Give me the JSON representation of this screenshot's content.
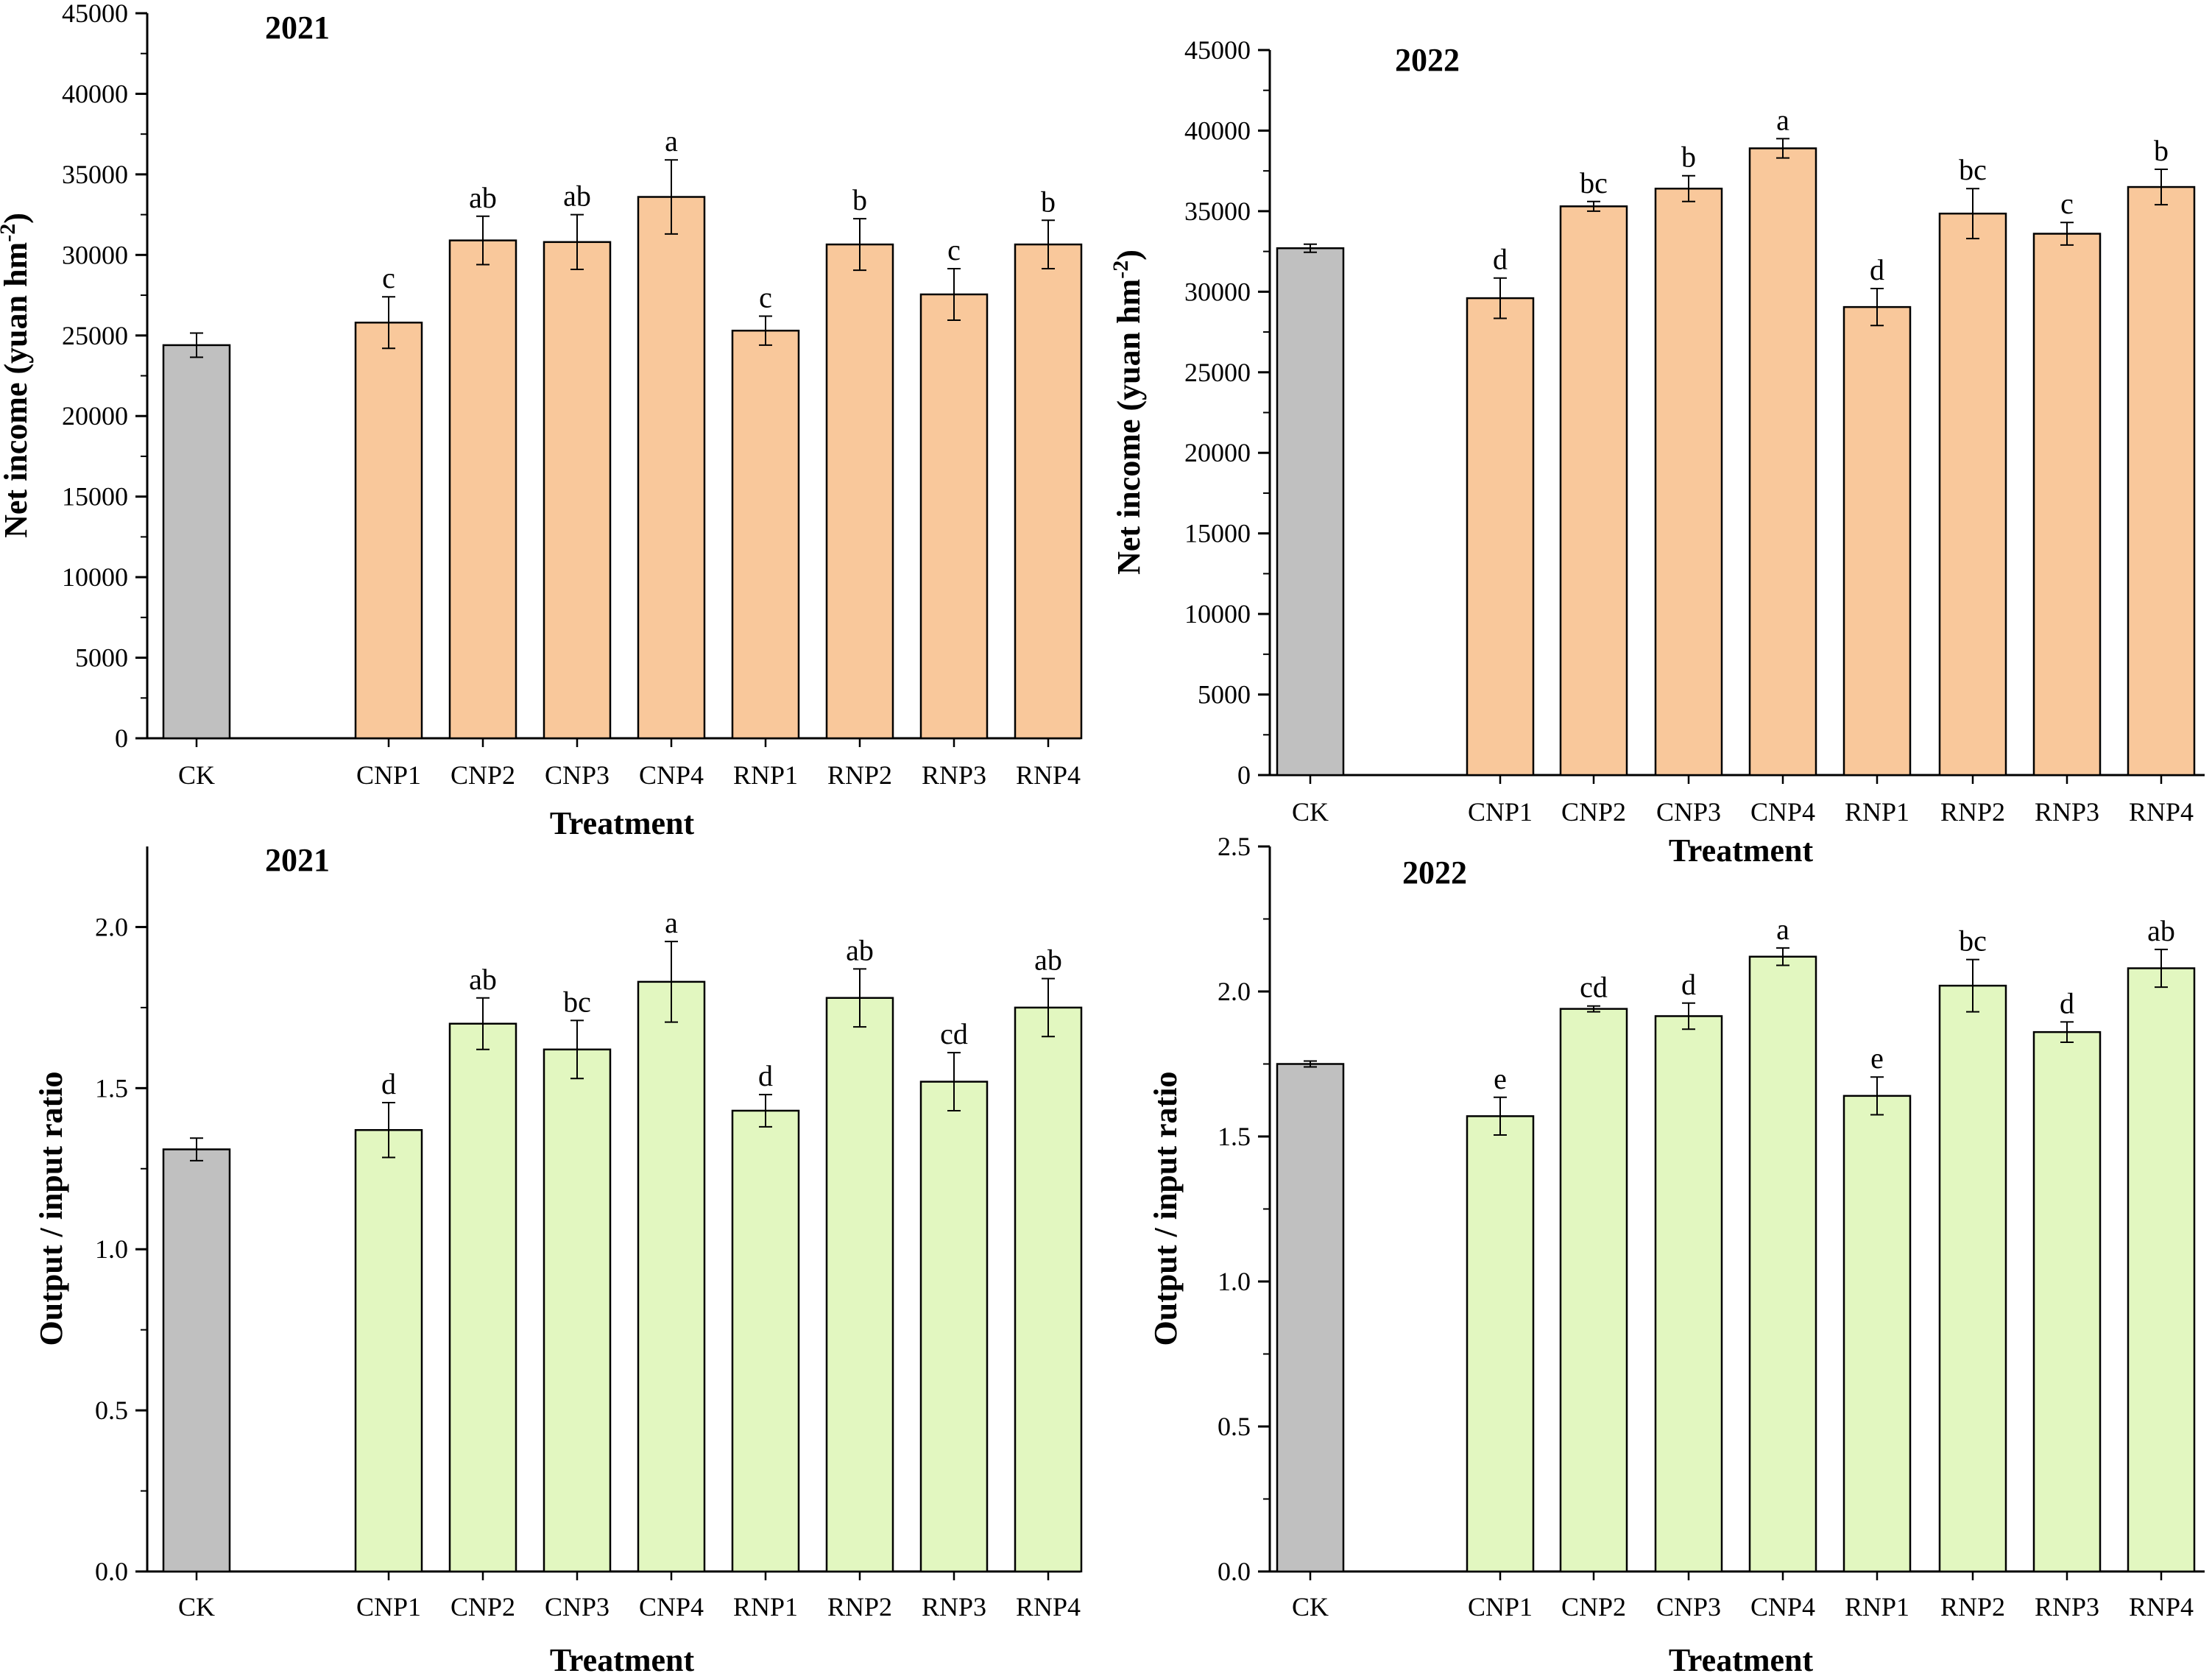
{
  "colors": {
    "ck": "#c0c0c0",
    "orange": "#f9c89b",
    "green": "#e2f7c0",
    "edge": "#000000"
  },
  "chart_data": [
    {
      "type": "bar",
      "title": "2021",
      "xlabel": "Treatment",
      "ylabel": "Net income (yuan hm",
      "ylabel_sup": "-2",
      "ylabel_close": ")",
      "ylim": [
        0,
        45000
      ],
      "yticks": [
        "0",
        "5000",
        "10000",
        "15000",
        "20000",
        "25000",
        "30000",
        "35000",
        "40000",
        "45000"
      ],
      "categories": [
        "CK",
        "CNP1",
        "CNP2",
        "CNP3",
        "CNP4",
        "RNP1",
        "RNP2",
        "RNP3",
        "RNP4"
      ],
      "values": [
        24400,
        25800,
        30900,
        30800,
        33600,
        25300,
        30650,
        27550,
        30650
      ],
      "errors": [
        750,
        1600,
        1500,
        1700,
        2300,
        900,
        1600,
        1600,
        1500
      ],
      "letters": [
        "",
        "c",
        "ab",
        "ab",
        "a",
        "c",
        "b",
        "c",
        "b"
      ],
      "fill": [
        "ck",
        "orange",
        "orange",
        "orange",
        "orange",
        "orange",
        "orange",
        "orange",
        "orange"
      ]
    },
    {
      "type": "bar",
      "title": "2022",
      "xlabel": "Treatment",
      "ylabel": "Net income (yuan hm",
      "ylabel_sup": "-2",
      "ylabel_close": ")",
      "ylim": [
        0,
        45000
      ],
      "yticks": [
        "0",
        "5000",
        "10000",
        "15000",
        "20000",
        "25000",
        "30000",
        "35000",
        "40000",
        "45000"
      ],
      "categories": [
        "CK",
        "CNP1",
        "CNP2",
        "CNP3",
        "CNP4",
        "RNP1",
        "RNP2",
        "RNP3",
        "RNP4"
      ],
      "values": [
        32700,
        29600,
        35300,
        36400,
        38900,
        29050,
        34850,
        33600,
        36500
      ],
      "errors": [
        250,
        1250,
        300,
        800,
        600,
        1150,
        1550,
        700,
        1100
      ],
      "letters": [
        "",
        "d",
        "bc",
        "b",
        "a",
        "d",
        "bc",
        "c",
        "b"
      ],
      "fill": [
        "ck",
        "orange",
        "orange",
        "orange",
        "orange",
        "orange",
        "orange",
        "orange",
        "orange"
      ]
    },
    {
      "type": "bar",
      "title": "2021",
      "xlabel": "Treatment",
      "ylabel": "Output / input ratio",
      "ylabel_sup": "",
      "ylabel_close": "",
      "ylim": [
        0,
        2.25
      ],
      "yticks": [
        "0.0",
        "0.5",
        "1.0",
        "1.5",
        "2.0"
      ],
      "categories": [
        "CK",
        "CNP1",
        "CNP2",
        "CNP3",
        "CNP4",
        "RNP1",
        "RNP2",
        "RNP3",
        "RNP4"
      ],
      "values": [
        1.31,
        1.37,
        1.7,
        1.62,
        1.83,
        1.43,
        1.78,
        1.52,
        1.75
      ],
      "errors": [
        0.035,
        0.085,
        0.08,
        0.09,
        0.125,
        0.05,
        0.09,
        0.09,
        0.09
      ],
      "letters": [
        "",
        "d",
        "ab",
        "bc",
        "a",
        "d",
        "ab",
        "cd",
        "ab"
      ],
      "fill": [
        "ck",
        "green",
        "green",
        "green",
        "green",
        "green",
        "green",
        "green",
        "green"
      ]
    },
    {
      "type": "bar",
      "title": "2022",
      "xlabel": "Treatment",
      "ylabel": "Output / input ratio",
      "ylabel_sup": "",
      "ylabel_close": "",
      "ylim": [
        0,
        2.5
      ],
      "yticks": [
        "0.0",
        "0.5",
        "1.0",
        "1.5",
        "2.0",
        "2.5"
      ],
      "categories": [
        "CK",
        "CNP1",
        "CNP2",
        "CNP3",
        "CNP4",
        "RNP1",
        "RNP2",
        "RNP3",
        "RNP4"
      ],
      "values": [
        1.75,
        1.57,
        1.94,
        1.915,
        2.12,
        1.64,
        2.02,
        1.86,
        2.08
      ],
      "errors": [
        0.01,
        0.065,
        0.01,
        0.045,
        0.03,
        0.065,
        0.09,
        0.035,
        0.065
      ],
      "letters": [
        "",
        "e",
        "cd",
        "d",
        "a",
        "e",
        "bc",
        "d",
        "ab"
      ],
      "fill": [
        "ck",
        "green",
        "green",
        "green",
        "green",
        "green",
        "green",
        "green",
        "green"
      ]
    }
  ]
}
